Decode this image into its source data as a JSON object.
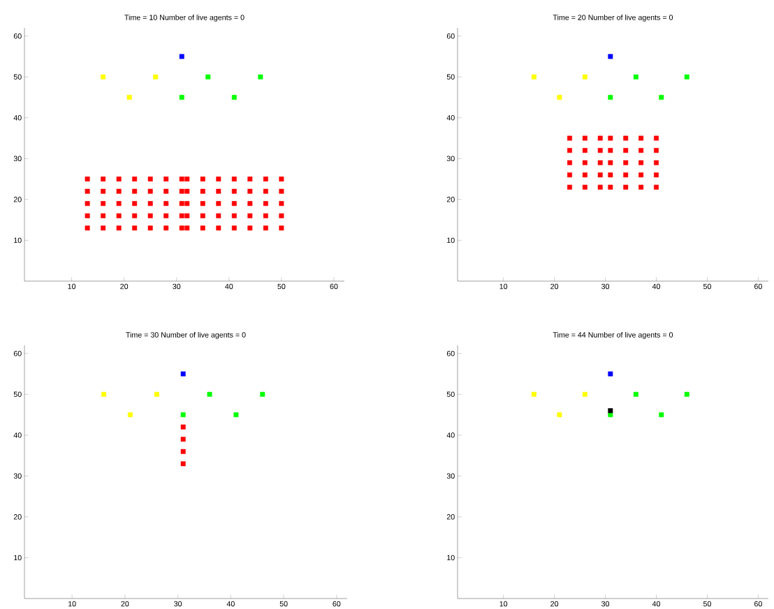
{
  "chart_data": [
    {
      "type": "scatter",
      "title": "Time = 10  Number of live agents = 0",
      "xlim": [
        1,
        62
      ],
      "ylim": [
        0,
        62
      ],
      "xticks": [
        10,
        20,
        30,
        40,
        50,
        60
      ],
      "yticks": [
        10,
        20,
        30,
        40,
        50,
        60
      ],
      "marker": "square",
      "series": [
        {
          "color": "#ffff00",
          "x": [
            16,
            21,
            26
          ],
          "values": [
            50,
            45,
            50
          ]
        },
        {
          "color": "#0000ff",
          "x": [
            31
          ],
          "values": [
            55
          ]
        },
        {
          "color": "#00ff00",
          "x": [
            31,
            36,
            41,
            46
          ],
          "values": [
            45,
            50,
            45,
            50
          ]
        },
        {
          "color": "#ff0000",
          "x": [
            13,
            13,
            13,
            13,
            13,
            16,
            16,
            16,
            16,
            16,
            19,
            19,
            19,
            19,
            19,
            22,
            22,
            22,
            22,
            22,
            25,
            25,
            25,
            25,
            25,
            28,
            28,
            28,
            28,
            28,
            31,
            31,
            31,
            31,
            31,
            32,
            32,
            32,
            32,
            32,
            35,
            35,
            35,
            35,
            35,
            38,
            38,
            38,
            38,
            38,
            41,
            41,
            41,
            41,
            41,
            44,
            44,
            44,
            44,
            44,
            47,
            47,
            47,
            47,
            47,
            50,
            50,
            50,
            50,
            50
          ],
          "values": [
            13,
            16,
            19,
            22,
            25,
            13,
            16,
            19,
            22,
            25,
            13,
            16,
            19,
            22,
            25,
            13,
            16,
            19,
            22,
            25,
            13,
            16,
            19,
            22,
            25,
            13,
            16,
            19,
            22,
            25,
            13,
            16,
            19,
            22,
            25,
            13,
            16,
            19,
            22,
            25,
            13,
            16,
            19,
            22,
            25,
            13,
            16,
            19,
            22,
            25,
            13,
            16,
            19,
            22,
            25,
            13,
            16,
            19,
            22,
            25,
            13,
            16,
            19,
            22,
            25,
            13,
            16,
            19,
            22,
            25
          ]
        }
      ]
    },
    {
      "type": "scatter",
      "title": "Time = 20  Number of live agents = 0",
      "xlim": [
        1,
        62
      ],
      "ylim": [
        0,
        62
      ],
      "xticks": [
        10,
        20,
        30,
        40,
        50,
        60
      ],
      "yticks": [
        10,
        20,
        30,
        40,
        50,
        60
      ],
      "marker": "square",
      "series": [
        {
          "color": "#ffff00",
          "x": [
            16,
            21,
            26
          ],
          "values": [
            50,
            45,
            50
          ]
        },
        {
          "color": "#0000ff",
          "x": [
            31
          ],
          "values": [
            55
          ]
        },
        {
          "color": "#00ff00",
          "x": [
            31,
            36,
            41,
            46
          ],
          "values": [
            45,
            50,
            45,
            50
          ]
        },
        {
          "color": "#ff0000",
          "x": [
            23,
            23,
            23,
            23,
            23,
            26,
            26,
            26,
            26,
            26,
            29,
            29,
            29,
            29,
            29,
            31,
            31,
            31,
            31,
            31,
            34,
            34,
            34,
            34,
            34,
            37,
            37,
            37,
            37,
            37,
            40,
            40,
            40,
            40,
            40
          ],
          "values": [
            23,
            26,
            29,
            32,
            35,
            23,
            26,
            29,
            32,
            35,
            23,
            26,
            29,
            32,
            35,
            23,
            26,
            29,
            32,
            35,
            23,
            26,
            29,
            32,
            35,
            23,
            26,
            29,
            32,
            35,
            23,
            26,
            29,
            32,
            35
          ]
        }
      ]
    },
    {
      "type": "scatter",
      "title": "Time = 30  Number of live agents = 0",
      "xlim": [
        1,
        62
      ],
      "ylim": [
        0,
        62
      ],
      "xticks": [
        10,
        20,
        30,
        40,
        50,
        60
      ],
      "yticks": [
        10,
        20,
        30,
        40,
        50,
        60
      ],
      "marker": "square",
      "series": [
        {
          "color": "#ffff00",
          "x": [
            16,
            21,
            26
          ],
          "values": [
            50,
            45,
            50
          ]
        },
        {
          "color": "#0000ff",
          "x": [
            31
          ],
          "values": [
            55
          ]
        },
        {
          "color": "#00ff00",
          "x": [
            31,
            36,
            41,
            46
          ],
          "values": [
            45,
            50,
            45,
            50
          ]
        },
        {
          "color": "#ff0000",
          "x": [
            31,
            31,
            31,
            31
          ],
          "values": [
            42,
            39,
            36,
            33
          ]
        }
      ]
    },
    {
      "type": "scatter",
      "title": "Time = 44  Number of live agents = 0",
      "xlim": [
        1,
        62
      ],
      "ylim": [
        0,
        62
      ],
      "xticks": [
        10,
        20,
        30,
        40,
        50,
        60
      ],
      "yticks": [
        10,
        20,
        30,
        40,
        50,
        60
      ],
      "marker": "square",
      "series": [
        {
          "color": "#ffff00",
          "x": [
            16,
            21,
            26
          ],
          "values": [
            50,
            45,
            50
          ]
        },
        {
          "color": "#0000ff",
          "x": [
            31
          ],
          "values": [
            55
          ]
        },
        {
          "color": "#00ff00",
          "x": [
            31,
            36,
            41,
            46
          ],
          "values": [
            45,
            50,
            45,
            50
          ]
        },
        {
          "color": "#000000",
          "x": [
            31
          ],
          "values": [
            46
          ]
        }
      ]
    }
  ]
}
